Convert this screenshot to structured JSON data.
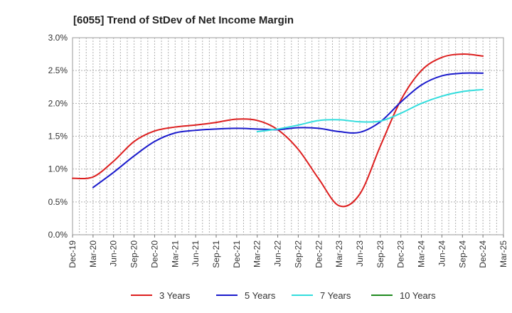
{
  "chart_data": {
    "type": "line",
    "title": "[6055]  Trend of StDev of Net Income Margin",
    "xlabel": "",
    "ylabel": "",
    "x_categories": [
      "Dec-19",
      "Mar-20",
      "Jun-20",
      "Sep-20",
      "Dec-20",
      "Mar-21",
      "Jun-21",
      "Sep-21",
      "Dec-21",
      "Mar-22",
      "Jun-22",
      "Sep-22",
      "Dec-22",
      "Mar-23",
      "Jun-23",
      "Sep-23",
      "Dec-23",
      "Mar-24",
      "Jun-24",
      "Sep-24",
      "Dec-24",
      "Mar-25"
    ],
    "y_ticks": [
      "0.0%",
      "0.5%",
      "1.0%",
      "1.5%",
      "2.0%",
      "2.5%",
      "3.0%"
    ],
    "ylim": [
      0,
      3.0
    ],
    "grid": true,
    "legend_position": "bottom",
    "series": [
      {
        "name": "3 Years",
        "color": "#dd1f1f",
        "values": [
          0.86,
          0.88,
          1.12,
          1.42,
          1.58,
          1.64,
          1.67,
          1.71,
          1.76,
          1.74,
          1.6,
          1.3,
          0.85,
          0.44,
          0.62,
          1.35,
          2.05,
          2.5,
          2.7,
          2.75,
          2.72,
          null
        ]
      },
      {
        "name": "5 Years",
        "color": "#1a1acc",
        "values": [
          null,
          0.72,
          0.95,
          1.2,
          1.42,
          1.55,
          1.59,
          1.61,
          1.62,
          1.61,
          1.6,
          1.63,
          1.62,
          1.57,
          1.56,
          1.72,
          2.02,
          2.28,
          2.42,
          2.46,
          2.46,
          null
        ]
      },
      {
        "name": "7 Years",
        "color": "#33dddd",
        "values": [
          null,
          null,
          null,
          null,
          null,
          null,
          null,
          null,
          null,
          1.57,
          1.61,
          1.67,
          1.74,
          1.75,
          1.72,
          1.73,
          1.85,
          2.0,
          2.11,
          2.18,
          2.21,
          null
        ]
      },
      {
        "name": "10 Years",
        "color": "#1f8a1f",
        "values": []
      }
    ]
  }
}
